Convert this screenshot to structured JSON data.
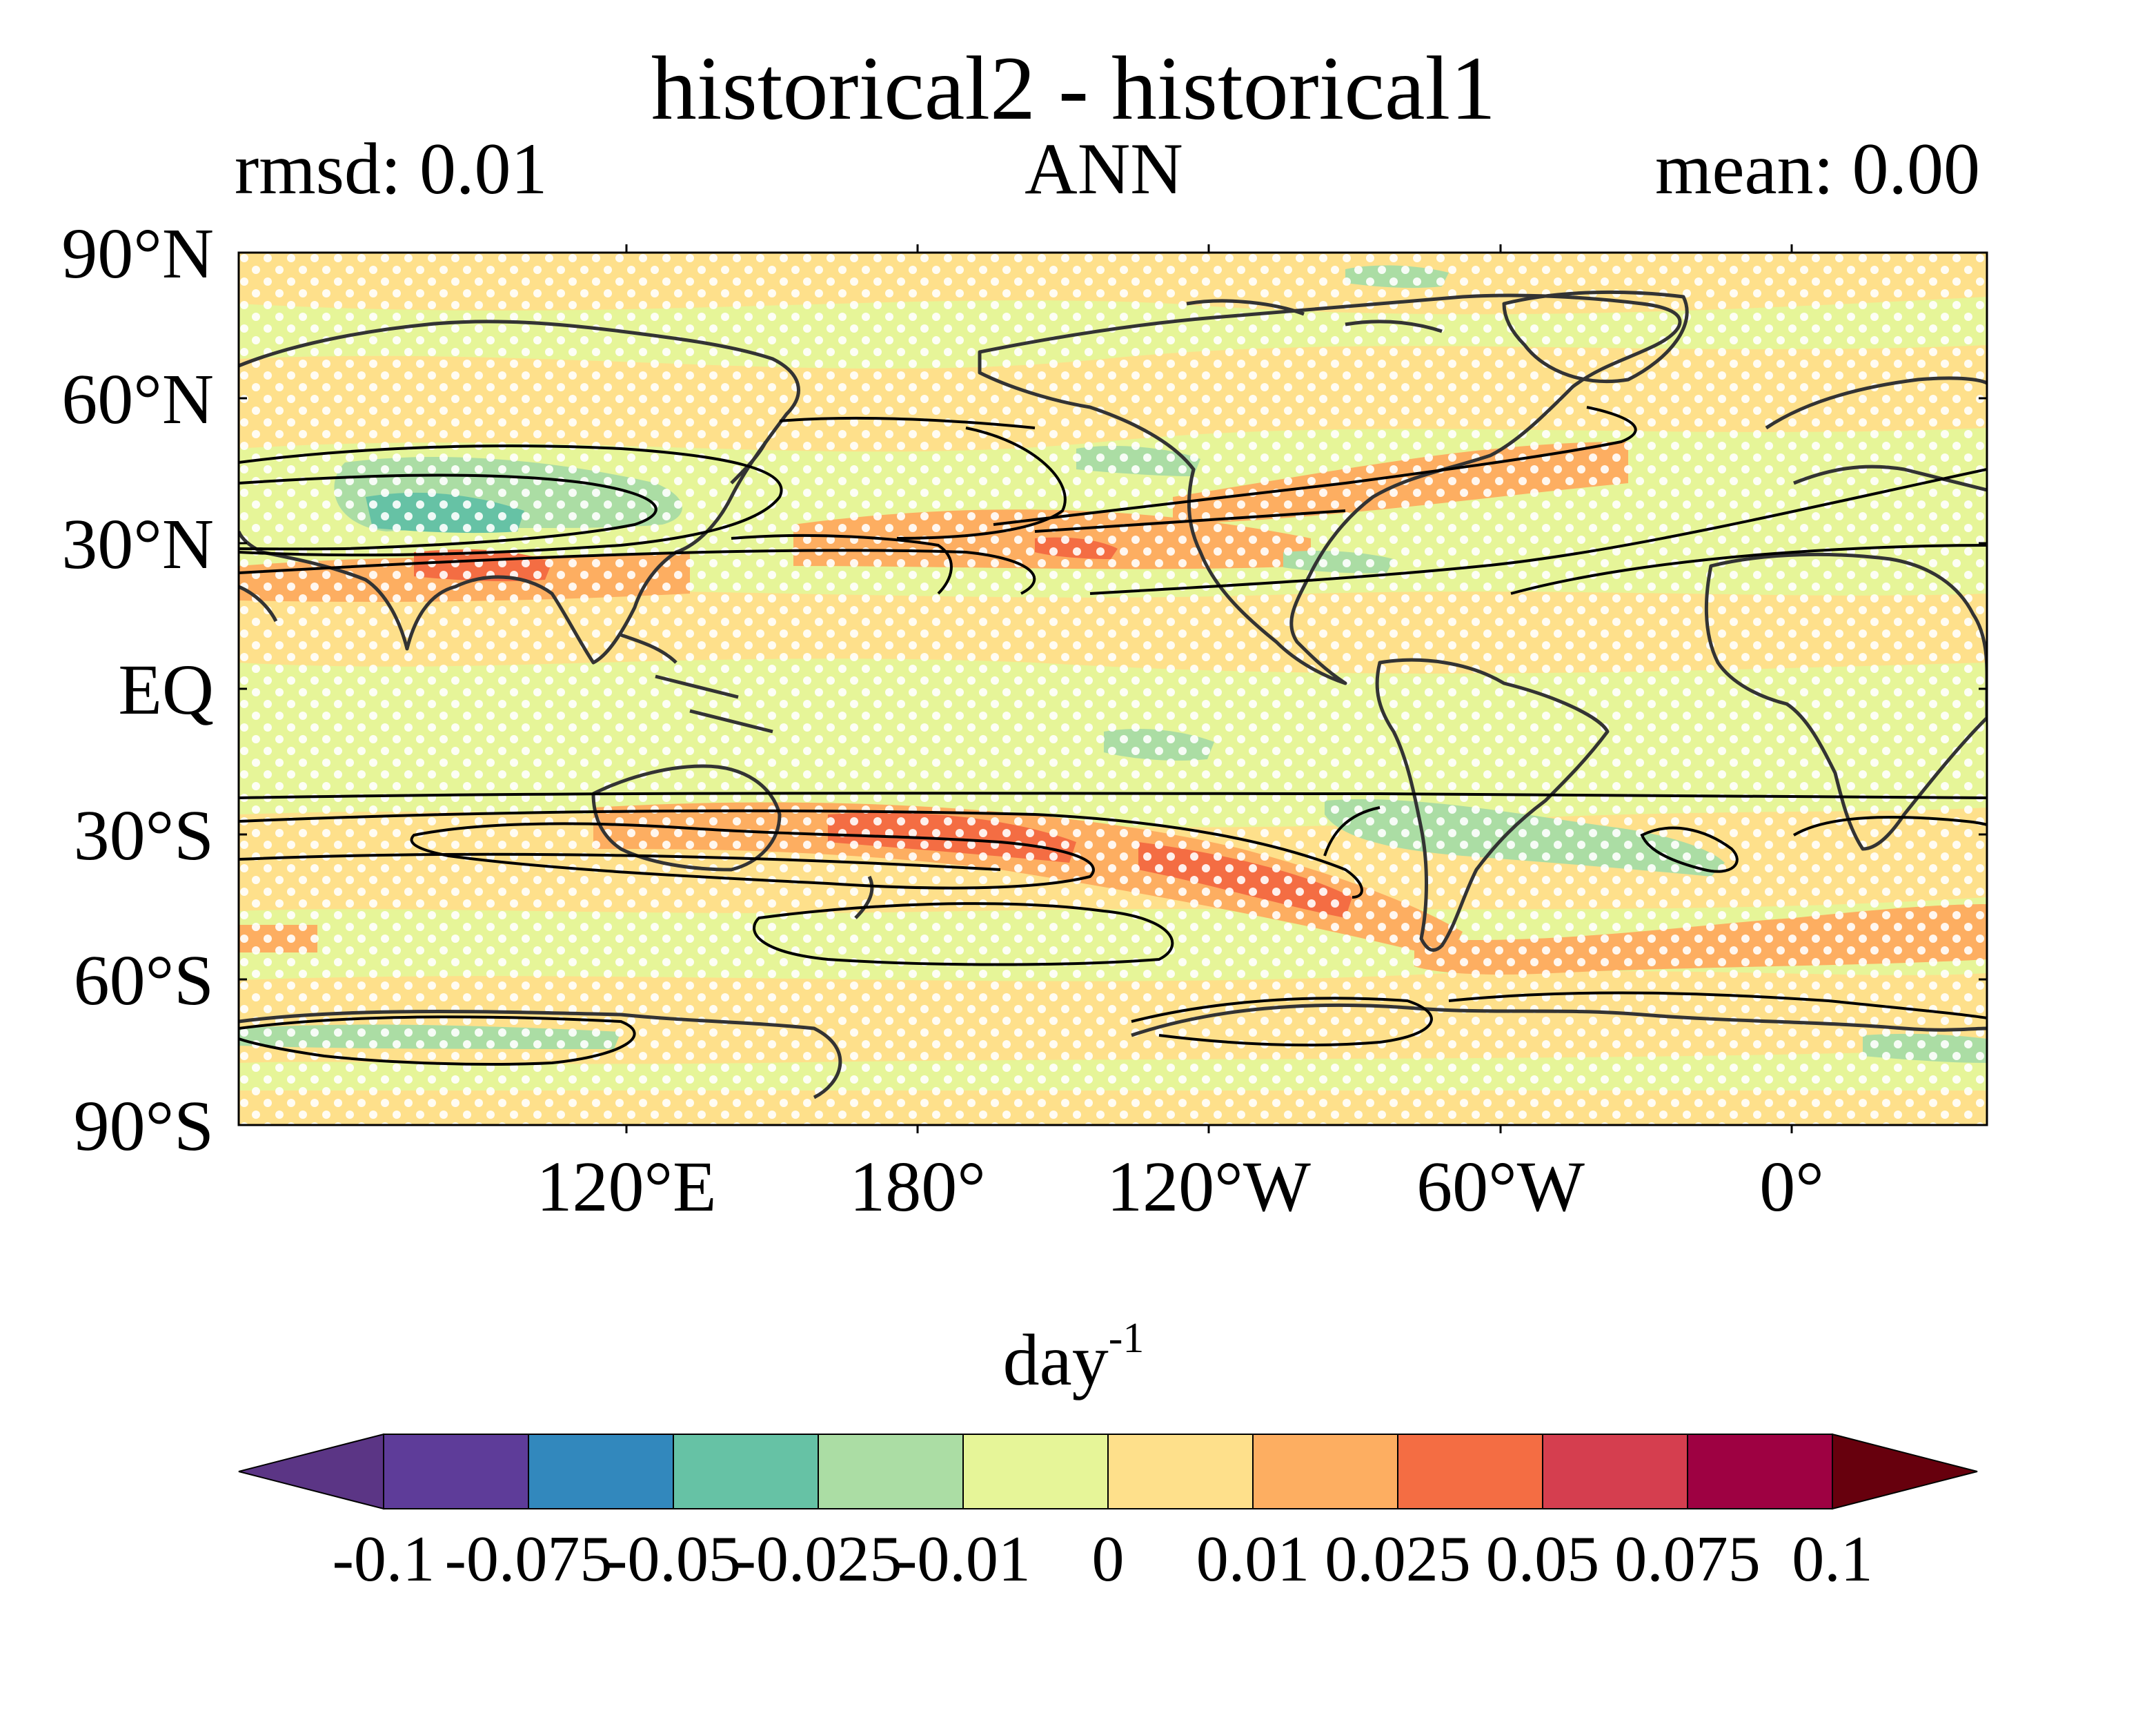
{
  "map": {
    "title": "historical2 - historical1",
    "subtitle_left": "rmsd: 0.01",
    "subtitle_center": "ANN",
    "subtitle_right": "mean: 0.00",
    "projection": "equirectangular, central longitude 210°E",
    "lat_labels": [
      "90°N",
      "60°N",
      "30°N",
      "EQ",
      "30°S",
      "60°S",
      "90°S"
    ],
    "lon_labels": [
      "120°E",
      "180°",
      "120°W",
      "60°W",
      "0°"
    ],
    "colorbar": {
      "unit_base": "day",
      "unit_exp": "-1",
      "ticks": [
        "-0.1",
        "-0.075",
        "-0.05",
        "-0.025",
        "-0.01",
        "0",
        "0.01",
        "0.025",
        "0.05",
        "0.075",
        "0.1"
      ],
      "colors": [
        "#5e3c99",
        "#3288bd",
        "#66c2a5",
        "#abdda4",
        "#e6f598",
        "#fee08b",
        "#fdae61",
        "#f46d43",
        "#d53e4f",
        "#9e0142"
      ],
      "under_color": "#5b3585",
      "over_color": "#67000d",
      "extend": "both"
    },
    "colors": {
      "background_field": "#e6f598",
      "neutral_positive": "#fee08b",
      "stipple": "#ffffff",
      "coastline": "#333333",
      "contour": "#000000"
    }
  }
}
